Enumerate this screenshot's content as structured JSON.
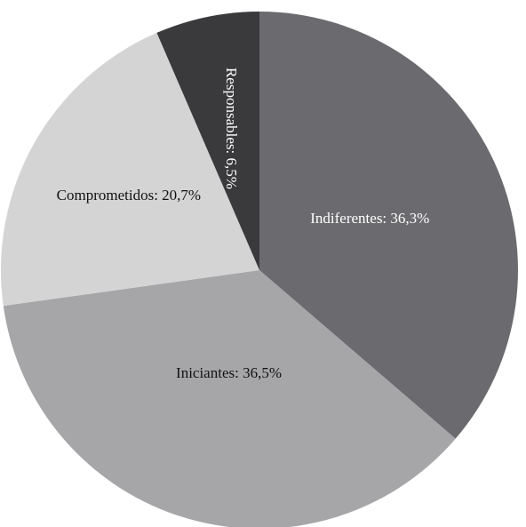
{
  "chart_data": {
    "type": "pie",
    "title": "",
    "slices": [
      {
        "name": "Indiferentes",
        "value": 36.3,
        "label": "Indiferentes: 36,3%",
        "color": "#6b6b6f",
        "text_color": "#ffffff"
      },
      {
        "name": "Iniciantes",
        "value": 36.5,
        "label": "Iniciantes: 36,5%",
        "color": "#a6a6a9",
        "text_color": "#111111"
      },
      {
        "name": "Comprometidos",
        "value": 20.7,
        "label": "Comprometidos: 20,7%",
        "color": "#d4d4d5",
        "text_color": "#111111"
      },
      {
        "name": "Responsables",
        "value": 6.5,
        "label": "Responsables: 6,5%",
        "color": "#3a3a3d",
        "text_color": "#ffffff"
      }
    ],
    "start_angle_deg": 0,
    "direction": "clockwise",
    "legend": "none"
  }
}
